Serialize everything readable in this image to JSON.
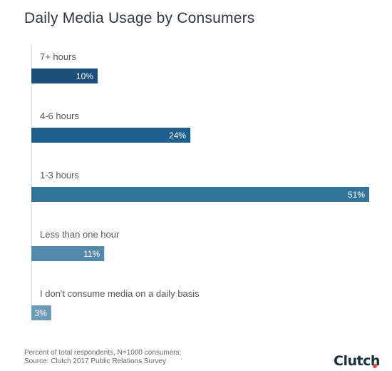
{
  "chart_data": {
    "type": "bar",
    "orientation": "horizontal",
    "title": "Daily Media Usage by Consumers",
    "categories": [
      "7+ hours",
      "4-6 hours",
      "1-3 hours",
      "Less than one hour",
      "I don't consume media on a daily basis"
    ],
    "values": [
      10,
      24,
      51,
      11,
      3
    ],
    "value_labels": [
      "10%",
      "24%",
      "51%",
      "11%",
      "3%"
    ],
    "xlim": [
      0,
      51
    ],
    "grid": false,
    "legend": "none",
    "colors": [
      "#1b4f7a",
      "#1e5f8b",
      "#347399",
      "#5288ab",
      "#6e9ab9"
    ]
  },
  "footnote": {
    "line1": "Percent of total respondents, N=1000 consumers;",
    "line2": "Source: Clutch 2017 Public Relations Survey"
  },
  "logo": {
    "text": "Clutch",
    "dot_color": "#ef4335"
  }
}
